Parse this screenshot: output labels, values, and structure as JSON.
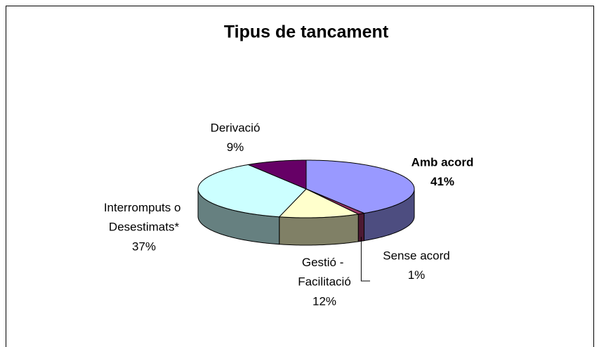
{
  "chart_data": {
    "type": "pie3d",
    "title": "Tipus de tancament",
    "categories": [
      "Amb acord",
      "Sense acord",
      "Gestió - Facilitació",
      "Interromputs o Desestimats*",
      "Derivació"
    ],
    "values": [
      41,
      1,
      12,
      37,
      9
    ],
    "value_labels": [
      "41%",
      "1%",
      "12%",
      "37%",
      "9%"
    ],
    "colors": [
      "#9999ff",
      "#993366",
      "#ffffcc",
      "#ccffff",
      "#660066"
    ]
  }
}
